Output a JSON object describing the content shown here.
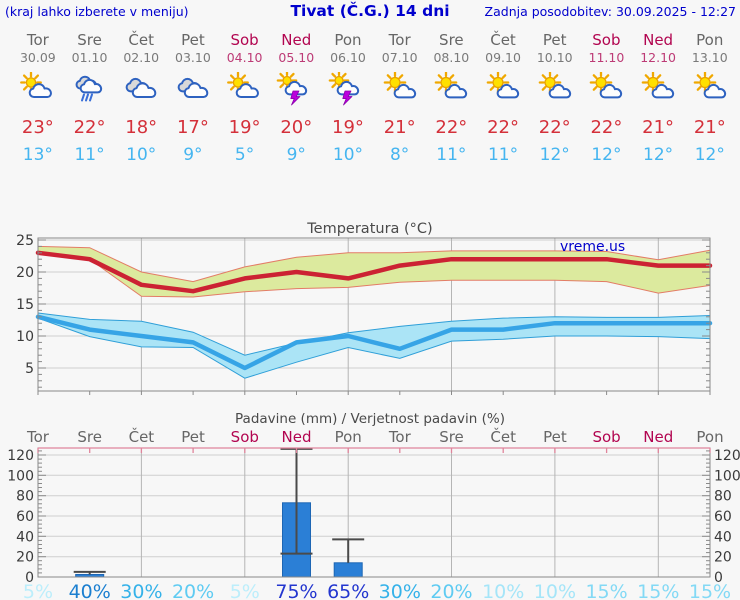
{
  "page": {
    "hint": "(kraj lahko izberete v meniju)",
    "title": "Tivat (Č.G.) 14 dni",
    "updated": "Zadnja posodobitev: 30.09.2025 - 12:27",
    "watermark": "vreme.us"
  },
  "units": {
    "degree": "°",
    "percent": "%"
  },
  "colors": {
    "link_blue": "#0000cd",
    "weekday_gray": "#666666",
    "weekend_red": "#b20550",
    "tmax_red": "#d4303a",
    "tmin_blue": "#45b5f0",
    "title_gray": "#4a4a4a",
    "axis_text": "#3a3a3a",
    "grid_h": "#cfcfcf",
    "grid_v": "#b5b5b5",
    "border": "#8a8a8a",
    "precip_top_border": "#e0849b",
    "bar_fill": "#2b7fd6",
    "bar_edge": "#1d66b4",
    "whisker": "#4a4a4a",
    "band_max_fill": "#dcea9e",
    "band_max_edge": "#e37c66",
    "band_min_fill": "#abe4f6",
    "band_min_edge": "#2f9fd8",
    "line_max": "#cc2233",
    "line_min": "#36a4e6",
    "watermark_blue": "#0000cc"
  },
  "days": [
    {
      "name": "Tor",
      "date": "30.09",
      "weekend": false,
      "icon": "partly-sunny",
      "tmax": 23,
      "tmin": 13,
      "precip_prob": 5
    },
    {
      "name": "Sre",
      "date": "01.10",
      "weekend": false,
      "icon": "rain",
      "tmax": 22,
      "tmin": 11,
      "precip_prob": 40
    },
    {
      "name": "Čet",
      "date": "02.10",
      "weekend": false,
      "icon": "cloudy",
      "tmax": 18,
      "tmin": 10,
      "precip_prob": 30
    },
    {
      "name": "Pet",
      "date": "03.10",
      "weekend": false,
      "icon": "cloudy",
      "tmax": 17,
      "tmin": 9,
      "precip_prob": 20
    },
    {
      "name": "Sob",
      "date": "04.10",
      "weekend": true,
      "icon": "partly-sunny",
      "tmax": 19,
      "tmin": 5,
      "precip_prob": 5
    },
    {
      "name": "Ned",
      "date": "05.10",
      "weekend": true,
      "icon": "thunderstorm",
      "tmax": 20,
      "tmin": 9,
      "precip_prob": 75
    },
    {
      "name": "Pon",
      "date": "06.10",
      "weekend": false,
      "icon": "thunderstorm",
      "tmax": 19,
      "tmin": 10,
      "precip_prob": 65
    },
    {
      "name": "Tor",
      "date": "07.10",
      "weekend": false,
      "icon": "mostly-sunny",
      "tmax": 21,
      "tmin": 8,
      "precip_prob": 30
    },
    {
      "name": "Sre",
      "date": "08.10",
      "weekend": false,
      "icon": "mostly-sunny",
      "tmax": 22,
      "tmin": 11,
      "precip_prob": 20
    },
    {
      "name": "Čet",
      "date": "09.10",
      "weekend": false,
      "icon": "mostly-sunny",
      "tmax": 22,
      "tmin": 11,
      "precip_prob": 10
    },
    {
      "name": "Pet",
      "date": "10.10",
      "weekend": false,
      "icon": "mostly-sunny",
      "tmax": 22,
      "tmin": 12,
      "precip_prob": 10
    },
    {
      "name": "Sob",
      "date": "11.10",
      "weekend": true,
      "icon": "mostly-sunny",
      "tmax": 22,
      "tmin": 12,
      "precip_prob": 15
    },
    {
      "name": "Ned",
      "date": "12.10",
      "weekend": true,
      "icon": "mostly-sunny",
      "tmax": 21,
      "tmin": 12,
      "precip_prob": 15
    },
    {
      "name": "Pon",
      "date": "13.10",
      "weekend": false,
      "icon": "mostly-sunny",
      "tmax": 21,
      "tmin": 12,
      "precip_prob": 15
    }
  ],
  "chart_data": [
    {
      "type": "line",
      "title": "Temperatura (°C)",
      "watermark": "vreme.us",
      "categories": [
        "Tor",
        "Sre",
        "Čet",
        "Pet",
        "Sob",
        "Ned",
        "Pon",
        "Tor",
        "Sre",
        "Čet",
        "Pet",
        "Sob",
        "Ned",
        "Pon"
      ],
      "yticks": [
        5,
        10,
        15,
        20,
        25
      ],
      "ylim": [
        1.5,
        25.3
      ],
      "grid": true,
      "series": [
        {
          "name": "max temperature",
          "color": "#cc2233",
          "values": [
            23,
            22,
            18,
            17,
            19,
            20,
            19,
            21,
            22,
            22,
            22,
            22,
            21,
            21
          ]
        },
        {
          "name": "min temperature",
          "color": "#36a4e6",
          "values": [
            13,
            11,
            10,
            9,
            5,
            9,
            10,
            8,
            11,
            11,
            12,
            12,
            12,
            12
          ]
        }
      ],
      "bands": [
        {
          "name": "max temperature range",
          "fill": "#dcea9e",
          "edge": "#e37c66",
          "upper": [
            24,
            23.8,
            20,
            18.5,
            20.8,
            22.3,
            23,
            23,
            23.3,
            23.3,
            23.3,
            23.2,
            21.9,
            23.4
          ],
          "lower": [
            23,
            22,
            16.2,
            16.1,
            16.9,
            17.4,
            17.6,
            18.4,
            18.7,
            18.7,
            18.7,
            18.5,
            16.7,
            17.9
          ]
        },
        {
          "name": "min temperature range",
          "fill": "#abe4f6",
          "edge": "#2f9fd8",
          "upper": [
            13.6,
            12.6,
            12.3,
            10.6,
            7,
            8.9,
            10.5,
            11.5,
            12.3,
            12.8,
            13,
            12.9,
            12.9,
            13.2
          ],
          "lower": [
            12.8,
            9.9,
            8.3,
            8.2,
            3.4,
            5.9,
            8.2,
            6.5,
            9.2,
            9.5,
            10,
            10,
            9.9,
            9.6
          ]
        }
      ]
    },
    {
      "type": "bar",
      "title": "Padavine (mm) / Verjetnost padavin (%)",
      "categories": [
        "Tor",
        "Sre",
        "Čet",
        "Pet",
        "Sob",
        "Ned",
        "Pon",
        "Tor",
        "Sre",
        "Čet",
        "Pet",
        "Sob",
        "Ned",
        "Pon"
      ],
      "yticks": [
        0,
        20,
        40,
        60,
        80,
        100,
        120
      ],
      "ylim": [
        0,
        127
      ],
      "grid": true,
      "bars": [
        {
          "day_index": 1,
          "label": "Sre 01.10",
          "value": 2.5,
          "whisker_low": 2.5,
          "whisker_high": 5,
          "cap_low": false
        },
        {
          "day_index": 5,
          "label": "Ned 05.10",
          "value": 73,
          "whisker_low": 23,
          "whisker_high": 126,
          "cap_low": true
        },
        {
          "day_index": 6,
          "label": "Pon 06.10",
          "value": 14,
          "whisker_low": 14,
          "whisker_high": 37,
          "cap_low": false
        }
      ],
      "probabilities": [
        5,
        40,
        30,
        20,
        5,
        75,
        65,
        30,
        20,
        10,
        10,
        15,
        15,
        15
      ],
      "prob_colors": {
        "5": "#bceefb",
        "10": "#a5e5f8",
        "15": "#83d9f5",
        "20": "#5ecbf2",
        "30": "#35b2e9",
        "40": "#1b7fd0",
        "65": "#2336cf",
        "75": "#2336cf"
      }
    }
  ]
}
